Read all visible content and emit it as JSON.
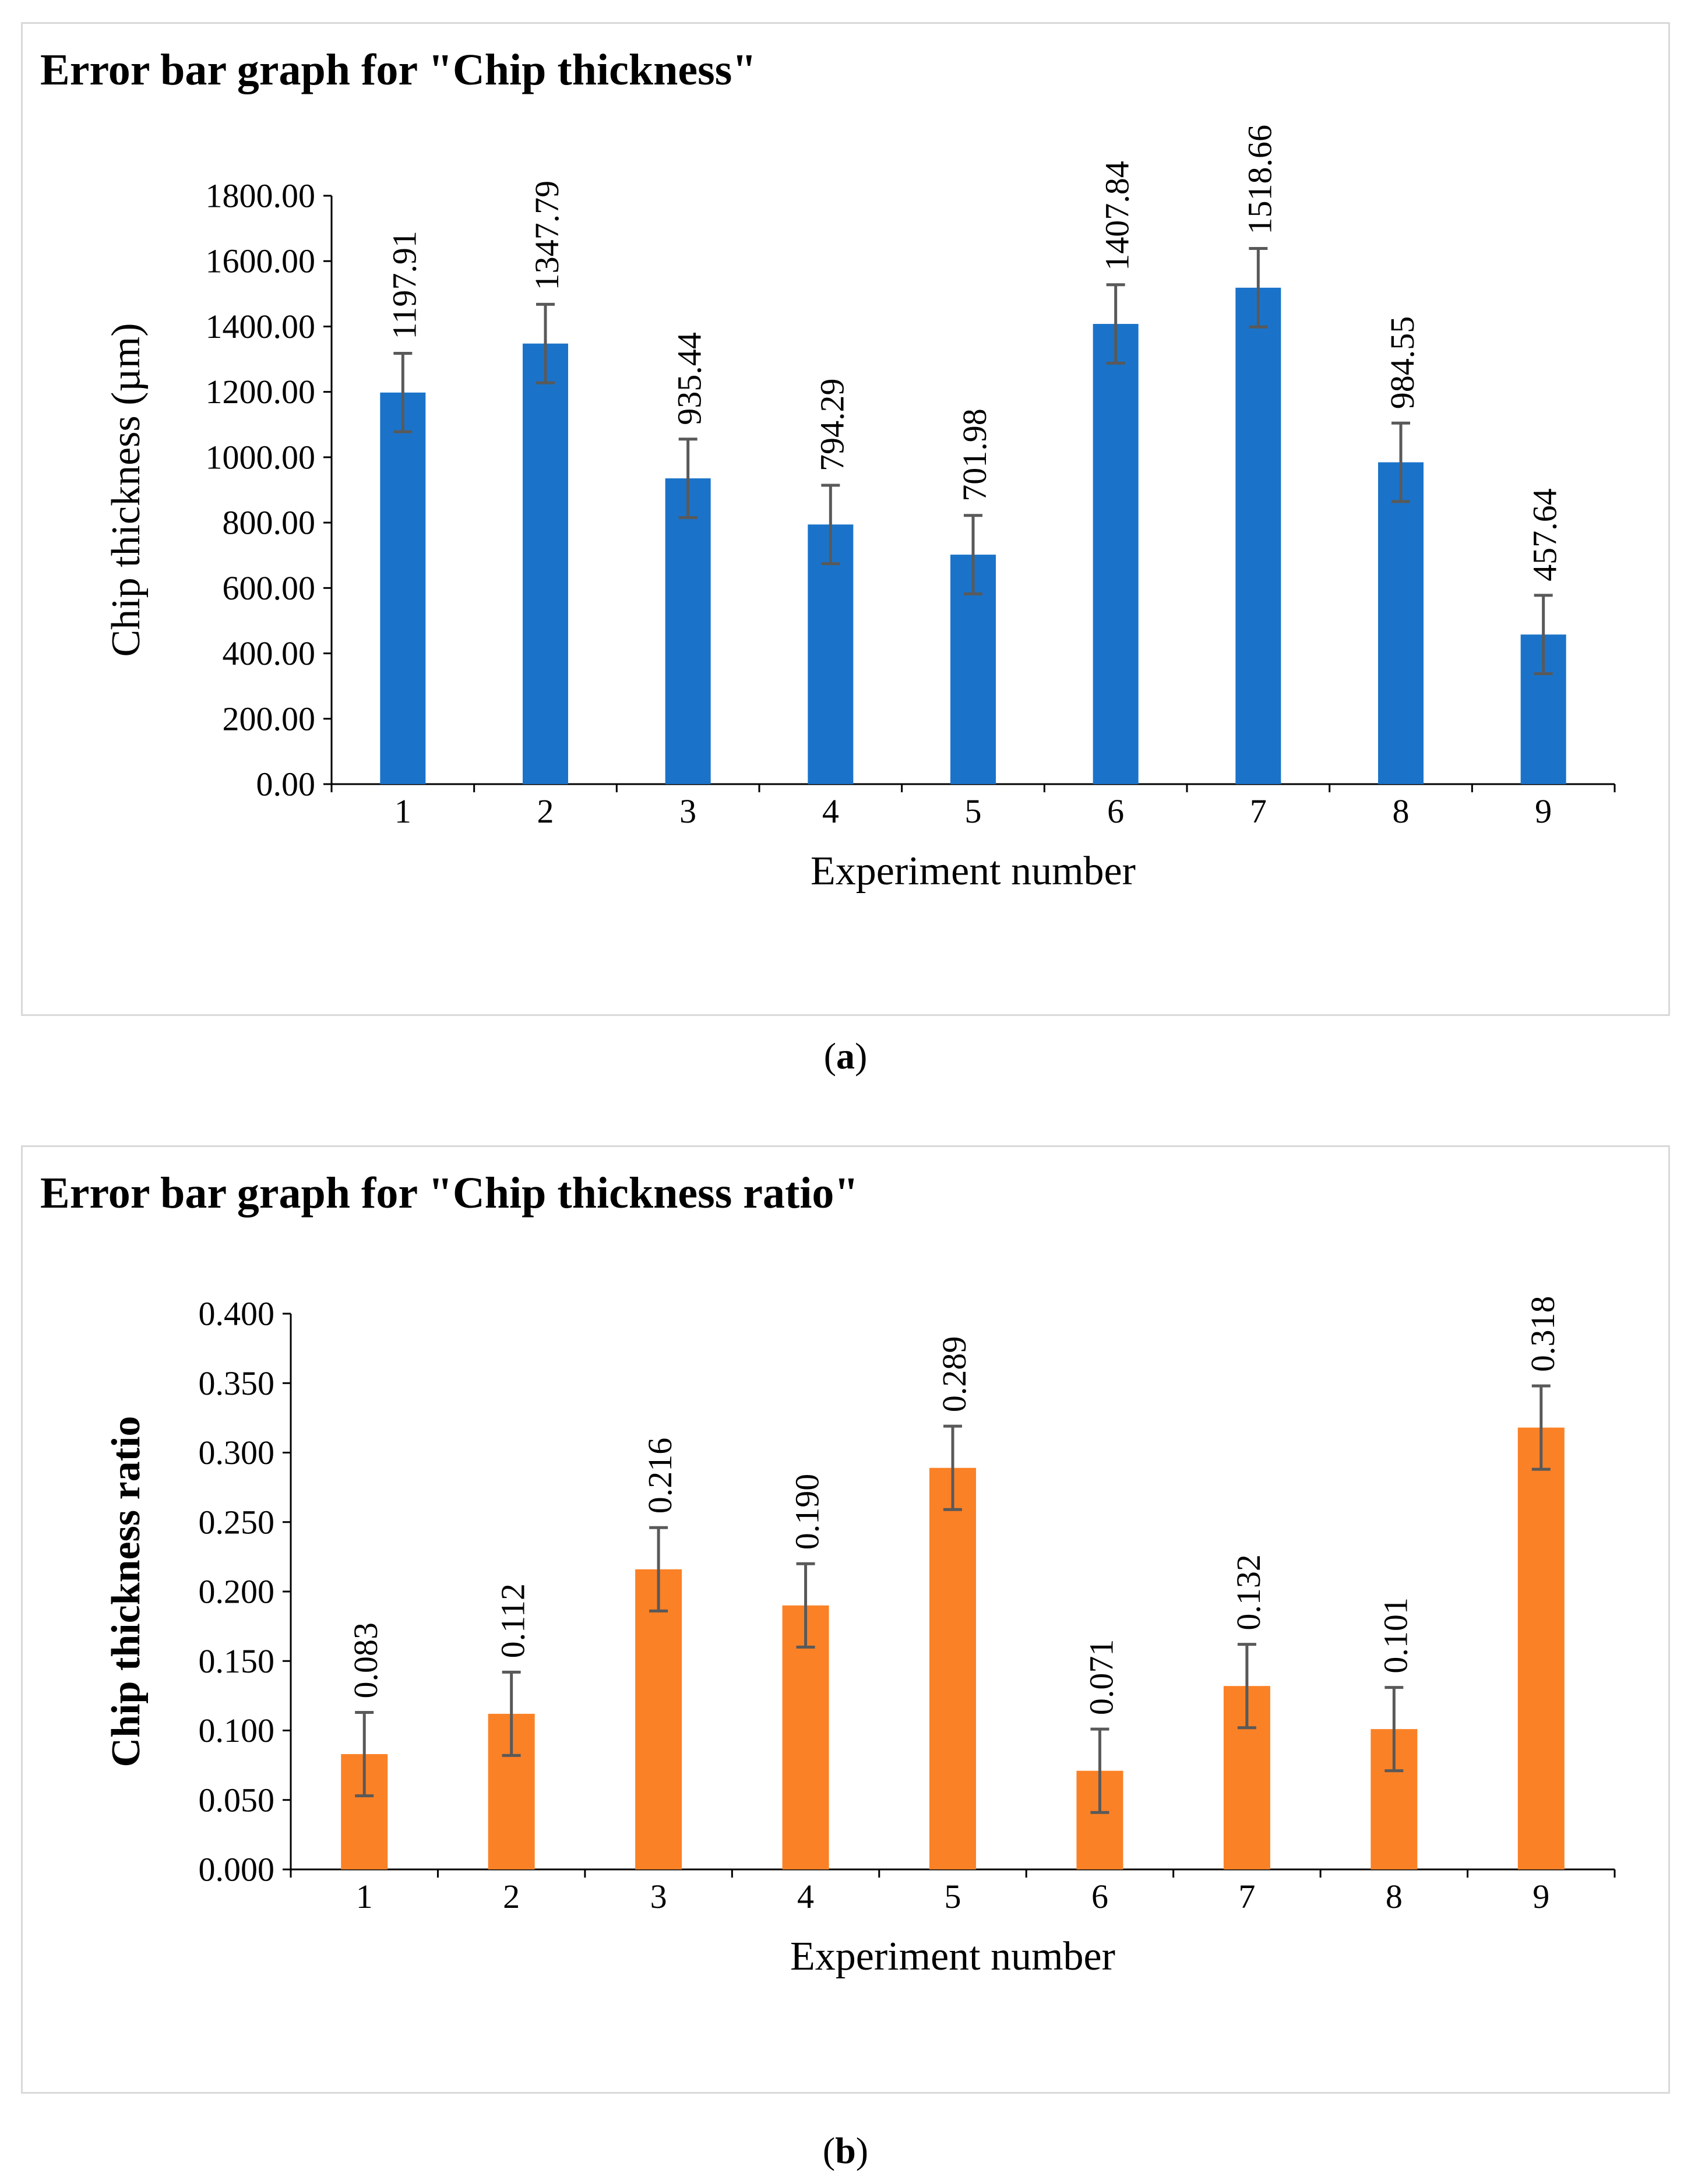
{
  "captions": [
    {
      "paren_open": "(",
      "letter": "a",
      "paren_close": ")"
    },
    {
      "paren_open": "(",
      "letter": "b",
      "paren_close": ")"
    }
  ],
  "chart_data": [
    {
      "type": "bar",
      "title": "Error bar graph for \"Chip thickness\"",
      "xlabel": "Experiment number",
      "ylabel": "Chip thickness (µm)",
      "ylabel_bold": false,
      "categories": [
        "1",
        "2",
        "3",
        "4",
        "5",
        "6",
        "7",
        "8",
        "9"
      ],
      "values": [
        1197.91,
        1347.79,
        935.44,
        794.29,
        701.98,
        1407.84,
        1518.66,
        984.55,
        457.64
      ],
      "value_labels": [
        "1197.91",
        "1347.79",
        "935.44",
        "794.29",
        "701.98",
        "1407.84",
        "1518.66",
        "984.55",
        "457.64"
      ],
      "error": 120,
      "ylim": [
        0,
        1800
      ],
      "yticks": [
        0,
        200,
        400,
        600,
        800,
        1000,
        1200,
        1400,
        1600,
        1800
      ],
      "ytick_labels": [
        "0.00",
        "200.00",
        "400.00",
        "600.00",
        "800.00",
        "1000.00",
        "1200.00",
        "1400.00",
        "1600.00",
        "1800.00"
      ],
      "bar_color": "#1a73c9",
      "error_color": "#595959",
      "grid": false
    },
    {
      "type": "bar",
      "title": "Error bar graph for \"Chip thickness ratio\"",
      "xlabel": "Experiment number",
      "ylabel": "Chip thickness ratio",
      "ylabel_bold": true,
      "categories": [
        "1",
        "2",
        "3",
        "4",
        "5",
        "6",
        "7",
        "8",
        "9"
      ],
      "values": [
        0.083,
        0.112,
        0.216,
        0.19,
        0.289,
        0.071,
        0.132,
        0.101,
        0.318
      ],
      "value_labels": [
        "0.083",
        "0.112",
        "0.216",
        "0.190",
        "0.289",
        "0.071",
        "0.132",
        "0.101",
        "0.318"
      ],
      "error": 0.03,
      "ylim": [
        0,
        0.4
      ],
      "yticks": [
        0,
        0.05,
        0.1,
        0.15,
        0.2,
        0.25,
        0.3,
        0.35,
        0.4
      ],
      "ytick_labels": [
        "0.000",
        "0.050",
        "0.100",
        "0.150",
        "0.200",
        "0.250",
        "0.300",
        "0.350",
        "0.400"
      ],
      "bar_color": "#fb8126",
      "error_color": "#595959",
      "grid": false
    }
  ]
}
